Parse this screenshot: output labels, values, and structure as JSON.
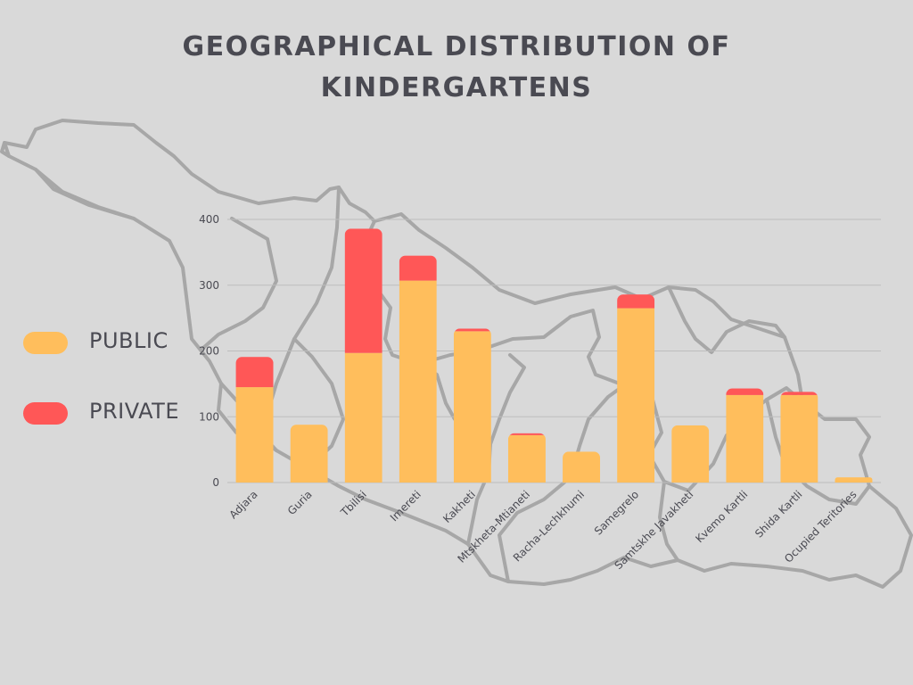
{
  "title_lines": [
    "GEOGRAPHICAL DISTRIBUTION OF",
    "KINDERGARTENS"
  ],
  "colors": {
    "public": "#ffbe5c",
    "private": "#ff5757",
    "grid": "#bdbdbd",
    "map_outline": "#a7a7a7",
    "text": "#4a4a52"
  },
  "legend": [
    {
      "label": "PUBLIC",
      "color": "#ffbe5c"
    },
    {
      "label": "PRIVATE",
      "color": "#ff5757"
    }
  ],
  "chart_data": {
    "type": "bar",
    "stacked": true,
    "categories": [
      "Adjara",
      "Guria",
      "Tbilisi",
      "Imereti",
      "Kakheti",
      "Mtskheta-Mtianeti",
      "Racha-Lechkhumi",
      "Samegrelo",
      "Samtskhe Javakheti",
      "Kvemo Kartli",
      "Shida Kartli",
      "Ocupied Teritories"
    ],
    "series": [
      {
        "name": "PUBLIC",
        "values": [
          145,
          88,
          197,
          307,
          230,
          72,
          47,
          265,
          87,
          133,
          133,
          8
        ]
      },
      {
        "name": "PRIVATE",
        "values": [
          46,
          0,
          189,
          38,
          4,
          3,
          0,
          21,
          0,
          10,
          5,
          0
        ]
      }
    ],
    "y_ticks": [
      0,
      100,
      200,
      300,
      400
    ],
    "ylim": [
      0,
      400
    ],
    "grid": true,
    "legend_position": "left"
  }
}
